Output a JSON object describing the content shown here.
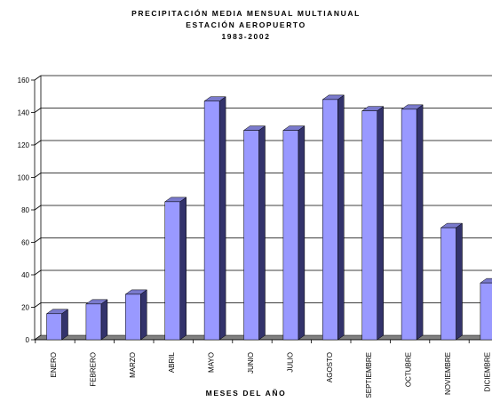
{
  "chart_data": {
    "type": "bar",
    "title": [
      "PRECIPITACIÓN MEDIA MENSUAL MULTIANUAL",
      "ESTACIÓN AEROPUERTO",
      "1983-2002"
    ],
    "xlabel": "MESES DEL AÑO",
    "ylabel": "",
    "categories": [
      "ENERO",
      "FEBRERO",
      "MARZO",
      "ABRIL",
      "MAYO",
      "JUNIO",
      "JULIO",
      "AGOSTO",
      "SEPTIEMBRE",
      "OCTUBRE",
      "NOVIEMBRE",
      "DICIEMBRE"
    ],
    "values": [
      16,
      22,
      28,
      85,
      147,
      129,
      129,
      148,
      141,
      142,
      69,
      35
    ],
    "ylim": [
      0,
      160
    ],
    "yticks": [
      0,
      20,
      40,
      60,
      80,
      100,
      120,
      140,
      160
    ],
    "grid": true,
    "legend": "none",
    "colors": {
      "bar_front": "#9999ff",
      "bar_side": "#33336b",
      "bar_top": "#7a7acc",
      "floor": "#808080",
      "grid": "#000000"
    }
  }
}
